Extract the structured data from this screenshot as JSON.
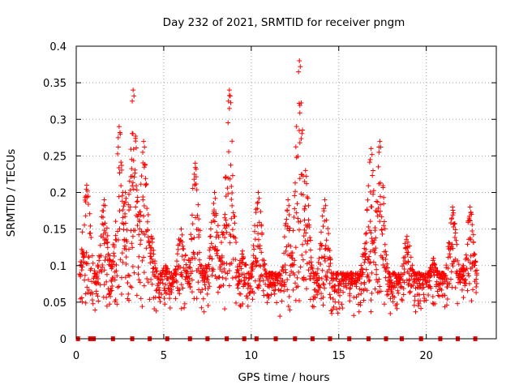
{
  "chart_data": {
    "type": "scatter",
    "title": "Day 232 of 2021, SRMTID for receiver pngm",
    "xlabel": "GPS time / hours",
    "ylabel": "SRMTID / TECUs",
    "xlim": [
      0,
      24
    ],
    "ylim": [
      0,
      0.4
    ],
    "grid": true,
    "marker": "+",
    "color": "#ff0000",
    "x_ticks": [
      {
        "value": 0,
        "label": "0"
      },
      {
        "value": 5,
        "label": "5"
      },
      {
        "value": 10,
        "label": "10"
      },
      {
        "value": 15,
        "label": "15"
      },
      {
        "value": 20,
        "label": "20"
      }
    ],
    "y_ticks": [
      {
        "value": 0,
        "label": "0"
      },
      {
        "value": 0.05,
        "label": "0.05"
      },
      {
        "value": 0.1,
        "label": "0.1"
      },
      {
        "value": 0.15,
        "label": "0.15"
      },
      {
        "value": 0.2,
        "label": "0.2"
      },
      {
        "value": 0.25,
        "label": "0.25"
      },
      {
        "value": 0.3,
        "label": "0.3"
      },
      {
        "value": 0.35,
        "label": "0.35"
      },
      {
        "value": 0.4,
        "label": "0.4"
      }
    ],
    "zero_marks_x": [
      0.1,
      0.8,
      1.0,
      2.1,
      3.2,
      4.2,
      5.2,
      6.5,
      7.5,
      8.6,
      9.6,
      10.3,
      11.4,
      12.5,
      13.5,
      14.5,
      15.6,
      16.7,
      17.7,
      18.6,
      19.7,
      20.8,
      21.8,
      22.8
    ],
    "peak_series": [
      {
        "x": 0.35,
        "y": 0.12
      },
      {
        "x": 0.6,
        "y": 0.21
      },
      {
        "x": 1.2,
        "y": 0.09
      },
      {
        "x": 1.6,
        "y": 0.19
      },
      {
        "x": 2.0,
        "y": 0.08
      },
      {
        "x": 2.45,
        "y": 0.29
      },
      {
        "x": 2.8,
        "y": 0.2
      },
      {
        "x": 3.25,
        "y": 0.34
      },
      {
        "x": 3.55,
        "y": 0.17
      },
      {
        "x": 3.85,
        "y": 0.27
      },
      {
        "x": 4.3,
        "y": 0.14
      },
      {
        "x": 5.1,
        "y": 0.1
      },
      {
        "x": 6.0,
        "y": 0.15
      },
      {
        "x": 6.8,
        "y": 0.24
      },
      {
        "x": 7.4,
        "y": 0.1
      },
      {
        "x": 7.9,
        "y": 0.2
      },
      {
        "x": 8.5,
        "y": 0.17
      },
      {
        "x": 8.75,
        "y": 0.34
      },
      {
        "x": 9.5,
        "y": 0.12
      },
      {
        "x": 10.4,
        "y": 0.2
      },
      {
        "x": 11.2,
        "y": 0.09
      },
      {
        "x": 12.1,
        "y": 0.19
      },
      {
        "x": 12.75,
        "y": 0.38
      },
      {
        "x": 13.1,
        "y": 0.23
      },
      {
        "x": 13.8,
        "y": 0.08
      },
      {
        "x": 14.2,
        "y": 0.19
      },
      {
        "x": 15.0,
        "y": 0.05
      },
      {
        "x": 15.7,
        "y": 0.09
      },
      {
        "x": 16.5,
        "y": 0.13
      },
      {
        "x": 16.85,
        "y": 0.26
      },
      {
        "x": 17.35,
        "y": 0.27
      },
      {
        "x": 18.0,
        "y": 0.07
      },
      {
        "x": 18.9,
        "y": 0.14
      },
      {
        "x": 19.6,
        "y": 0.06
      },
      {
        "x": 20.4,
        "y": 0.11
      },
      {
        "x": 21.5,
        "y": 0.18
      },
      {
        "x": 22.1,
        "y": 0.1
      },
      {
        "x": 22.5,
        "y": 0.18
      }
    ]
  }
}
